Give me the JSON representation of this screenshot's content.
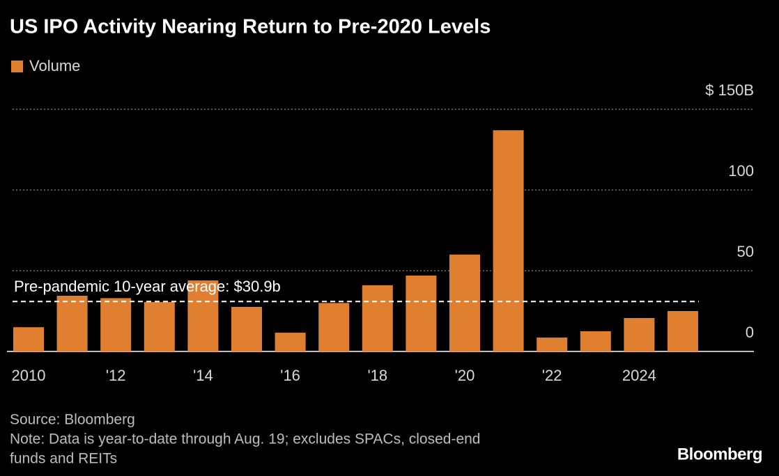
{
  "chart_data": {
    "type": "bar",
    "title": "US IPO Activity Nearing Return to Pre-2020 Levels",
    "series": [
      {
        "name": "Volume",
        "color": "#e07f30",
        "values": [
          15,
          34.5,
          33,
          30.6,
          44,
          27.6,
          11.6,
          30,
          41,
          47,
          60,
          137,
          8.6,
          12.5,
          20.7,
          25
        ]
      }
    ],
    "categories": [
      "2010",
      null,
      "'12",
      null,
      "'14",
      null,
      "'16",
      null,
      "'18",
      null,
      "'20",
      null,
      "'22",
      null,
      "2024",
      null
    ],
    "ylim": [
      0,
      150
    ],
    "yticks": [
      0,
      50,
      100,
      {
        "value": 150,
        "label": "$ 150B"
      }
    ],
    "grid": true,
    "average": {
      "value": 30.9,
      "label": "Pre-pandemic 10-year average: $30.9b"
    },
    "source": "Source: Bloomberg",
    "note": [
      "Note: Data is year-to-date through Aug. 19; excludes SPACs, closed-end",
      "funds and REITs"
    ],
    "brand": "Bloomberg"
  }
}
